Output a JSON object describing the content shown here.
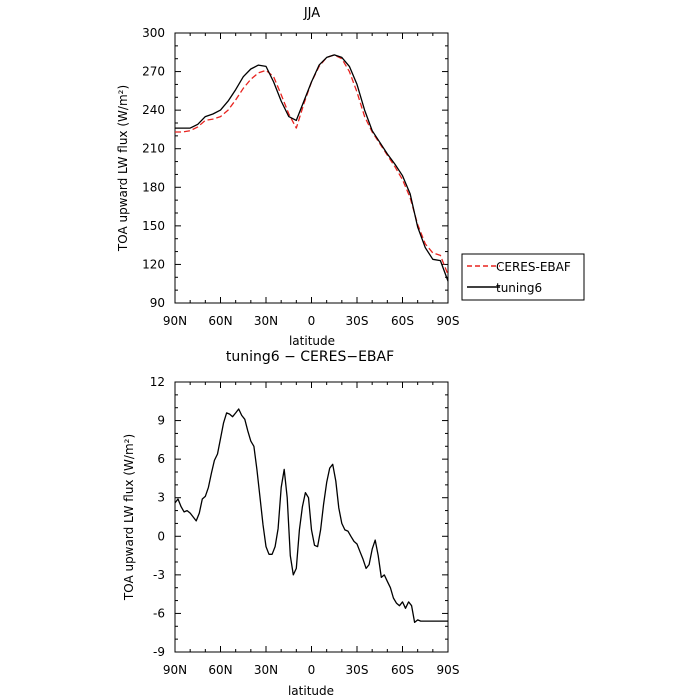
{
  "chart_data": [
    {
      "type": "line",
      "title": "JJA",
      "xlabel": "latitude",
      "ylabel": "TOA upward LW flux (W/m²)",
      "xlim": [
        90,
        -90
      ],
      "ylim": [
        90,
        300
      ],
      "yticks": [
        90,
        120,
        150,
        180,
        210,
        240,
        270,
        300
      ],
      "xticks": [
        90,
        60,
        30,
        0,
        -30,
        -60,
        -90
      ],
      "xticklabels": [
        "90N",
        "60N",
        "30N",
        "0",
        "30S",
        "60S",
        "90S"
      ],
      "legend_position": "right",
      "series": [
        {
          "name": "CERES-EBAF",
          "color": "#e8231f",
          "dash": true,
          "x": [
            90,
            85,
            80,
            75,
            70,
            65,
            60,
            55,
            50,
            45,
            40,
            35,
            30,
            25,
            20,
            15,
            10,
            5,
            0,
            -5,
            -10,
            -15,
            -20,
            -25,
            -30,
            -35,
            -40,
            -45,
            -50,
            -55,
            -60,
            -65,
            -70,
            -75,
            -80,
            -85,
            -90
          ],
          "y": [
            223,
            223,
            224,
            227,
            232,
            233,
            235,
            240,
            248,
            257,
            264,
            269,
            271,
            266,
            252,
            237,
            226,
            245,
            262,
            274,
            281,
            283,
            280,
            270,
            254,
            235,
            223,
            214,
            205,
            196,
            186,
            172,
            151,
            136,
            129,
            127,
            112
          ]
        },
        {
          "name": "tuning6",
          "color": "#000000",
          "dash": false,
          "x": [
            90,
            85,
            80,
            75,
            70,
            65,
            60,
            55,
            50,
            45,
            40,
            35,
            30,
            25,
            20,
            15,
            10,
            5,
            0,
            -5,
            -10,
            -15,
            -20,
            -25,
            -30,
            -35,
            -40,
            -45,
            -50,
            -55,
            -60,
            -65,
            -70,
            -75,
            -80,
            -85,
            -90
          ],
          "y": [
            226,
            226,
            226,
            229,
            235,
            237,
            240,
            247,
            256,
            266,
            272,
            275,
            274,
            262,
            247,
            235,
            232,
            247,
            262,
            275,
            281,
            283,
            281,
            274,
            260,
            240,
            224,
            215,
            206,
            198,
            189,
            175,
            149,
            133,
            124,
            123,
            107
          ]
        }
      ]
    },
    {
      "type": "line",
      "title": "tuning6 − CERES−EBAF",
      "xlabel": "latitude",
      "ylabel": "TOA upward LW flux (W/m²)",
      "xlim": [
        90,
        -90
      ],
      "ylim": [
        -9,
        12
      ],
      "yticks": [
        -9,
        -6,
        -3,
        0,
        3,
        6,
        9,
        12
      ],
      "xticks": [
        90,
        60,
        30,
        0,
        -30,
        -60,
        -90
      ],
      "xticklabels": [
        "90N",
        "60N",
        "30N",
        "0",
        "30S",
        "60S",
        "90S"
      ],
      "series": [
        {
          "name": "tuning6 − CERES−EBAF",
          "color": "#000000",
          "dash": false,
          "x": [
            90,
            88,
            86,
            84,
            82,
            80,
            78,
            76,
            74,
            72,
            70,
            68,
            66,
            64,
            62,
            60,
            58,
            56,
            54,
            52,
            50,
            48,
            46,
            44,
            42,
            40,
            38,
            36,
            34,
            32,
            30,
            28,
            26,
            24,
            22,
            20,
            18,
            16,
            14,
            12,
            10,
            8,
            6,
            4,
            2,
            0,
            -2,
            -4,
            -6,
            -8,
            -10,
            -12,
            -14,
            -16,
            -18,
            -20,
            -22,
            -24,
            -26,
            -28,
            -30,
            -32,
            -34,
            -36,
            -38,
            -40,
            -42,
            -44,
            -46,
            -48,
            -50,
            -52,
            -54,
            -56,
            -58,
            -60,
            -62,
            -64,
            -66,
            -68,
            -70,
            -72,
            -74,
            -76,
            -78,
            -80,
            -82,
            -84,
            -86,
            -88,
            -90
          ],
          "y": [
            2.6,
            2.9,
            2.3,
            1.9,
            2.0,
            1.8,
            1.5,
            1.2,
            1.8,
            2.9,
            3.1,
            3.8,
            4.9,
            5.9,
            6.4,
            7.6,
            8.8,
            9.6,
            9.5,
            9.3,
            9.6,
            9.9,
            9.4,
            9.1,
            8.2,
            7.4,
            7.0,
            5.2,
            3.1,
            0.9,
            -0.8,
            -1.4,
            -1.4,
            -0.8,
            0.6,
            3.8,
            5.2,
            3.0,
            -1.5,
            -3.0,
            -2.5,
            0.5,
            2.3,
            3.4,
            3.0,
            0.5,
            -0.7,
            -0.8,
            0.5,
            2.5,
            4.2,
            5.3,
            5.6,
            4.3,
            2.2,
            1.0,
            0.5,
            0.4,
            0.0,
            -0.4,
            -0.6,
            -1.2,
            -1.8,
            -2.5,
            -2.2,
            -1.0,
            -0.3,
            -1.5,
            -3.2,
            -3.0,
            -3.5,
            -4.0,
            -4.8,
            -5.2,
            -5.4,
            -5.1,
            -5.6,
            -5.1,
            -5.4,
            -6.7,
            -6.5,
            -6.6,
            -6.6,
            -6.6,
            -6.6,
            -6.6,
            -6.6,
            -6.6,
            -6.6,
            -6.6,
            -6.6
          ]
        }
      ]
    }
  ]
}
